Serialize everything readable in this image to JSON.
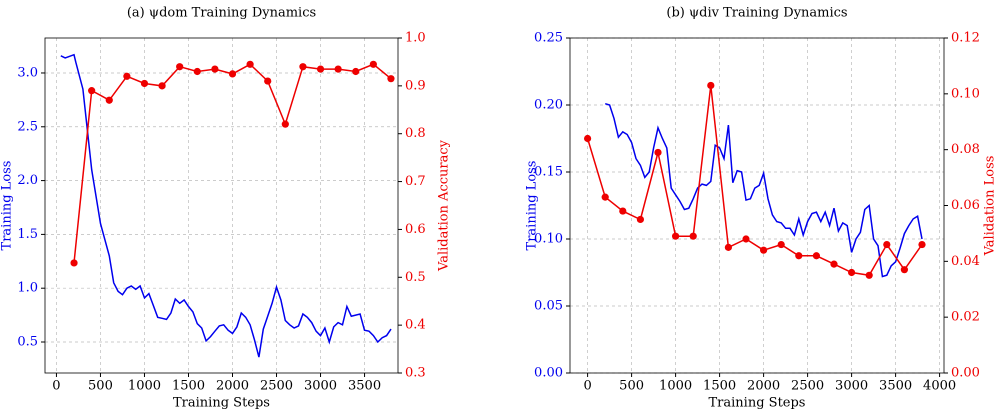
{
  "chart_data": [
    {
      "type": "line",
      "title": "(a) ψdom Training Dynamics",
      "xlabel": "Training Steps",
      "ylabel": "Training Loss",
      "y2label": "Validation Accuracy",
      "grid": true,
      "xlim": [
        -130,
        3880
      ],
      "xticks": [
        0,
        500,
        1000,
        1500,
        2000,
        2500,
        3000,
        3500
      ],
      "ylim": [
        0.212,
        3.325
      ],
      "yticks": [
        {
          "value": 0.5,
          "label": "0.5"
        },
        {
          "value": 1.0,
          "label": "1.0"
        },
        {
          "value": 1.5,
          "label": "1.5"
        },
        {
          "value": 2.0,
          "label": "2.0"
        },
        {
          "value": 2.5,
          "label": "2.5"
        },
        {
          "value": 3.0,
          "label": "3.0"
        }
      ],
      "y2lim": [
        0.3,
        1.0
      ],
      "y2ticks": [
        0.3,
        0.4,
        0.5,
        0.6,
        0.7,
        0.8,
        0.9,
        {
          "value": 1.0,
          "label": "1.0"
        }
      ],
      "series": [
        {
          "name": "Training Loss",
          "color": "#0000ee",
          "markers": false,
          "x": [
            50,
            100,
            200,
            220,
            300,
            400,
            500,
            600,
            650,
            700,
            750,
            800,
            850,
            900,
            950,
            1000,
            1050,
            1100,
            1150,
            1200,
            1250,
            1300,
            1350,
            1400,
            1450,
            1500,
            1550,
            1600,
            1650,
            1700,
            1750,
            1800,
            1850,
            1900,
            1950,
            2000,
            2050,
            2100,
            2150,
            2200,
            2250,
            2300,
            2350,
            2400,
            2450,
            2500,
            2550,
            2600,
            2650,
            2700,
            2750,
            2800,
            2850,
            2900,
            2950,
            3000,
            3050,
            3100,
            3150,
            3200,
            3250,
            3300,
            3350,
            3400,
            3450,
            3500,
            3550,
            3600,
            3650,
            3700,
            3750,
            3800
          ],
          "values": [
            3.16,
            3.14,
            3.17,
            3.1,
            2.85,
            2.1,
            1.6,
            1.3,
            1.05,
            0.97,
            0.94,
            1.0,
            1.02,
            0.99,
            1.02,
            0.91,
            0.95,
            0.84,
            0.73,
            0.72,
            0.71,
            0.77,
            0.9,
            0.86,
            0.89,
            0.83,
            0.78,
            0.67,
            0.63,
            0.51,
            0.55,
            0.6,
            0.65,
            0.66,
            0.61,
            0.58,
            0.64,
            0.77,
            0.73,
            0.66,
            0.52,
            0.36,
            0.62,
            0.74,
            0.86,
            1.01,
            0.89,
            0.7,
            0.66,
            0.63,
            0.65,
            0.76,
            0.73,
            0.68,
            0.6,
            0.56,
            0.63,
            0.5,
            0.64,
            0.68,
            0.66,
            0.83,
            0.74,
            0.75,
            0.76,
            0.61,
            0.6,
            0.56,
            0.5,
            0.54,
            0.56,
            0.62
          ]
        },
        {
          "name": "Validation Accuracy",
          "color": "#ee0000",
          "axis": "y2",
          "markers": true,
          "x": [
            200,
            400,
            600,
            800,
            1000,
            1200,
            1400,
            1600,
            1800,
            2000,
            2200,
            2400,
            2600,
            2800,
            3000,
            3200,
            3400,
            3600,
            3800
          ],
          "values": [
            0.53,
            0.89,
            0.87,
            0.92,
            0.905,
            0.9,
            0.94,
            0.93,
            0.935,
            0.925,
            0.945,
            0.91,
            0.82,
            0.94,
            0.935,
            0.935,
            0.93,
            0.945,
            0.915
          ]
        }
      ]
    },
    {
      "type": "line",
      "title": "(b) ψdiv Training Dynamics",
      "xlabel": "Training Steps",
      "ylabel": "Training Loss",
      "y2label": "Validation Loss",
      "grid": true,
      "xlim": [
        -200,
        4050
      ],
      "xticks": [
        0,
        500,
        1000,
        1500,
        2000,
        2500,
        3000,
        3500,
        4000
      ],
      "ylim": [
        0,
        0.25
      ],
      "yticks": [
        {
          "value": 0,
          "label": "0.00"
        },
        0.05,
        {
          "value": 0.1,
          "label": "0.10"
        },
        0.15,
        {
          "value": 0.2,
          "label": "0.20"
        },
        0.25
      ],
      "y2lim": [
        0,
        0.12
      ],
      "y2ticks": [
        {
          "value": 0,
          "label": "0.00"
        },
        0.02,
        0.04,
        0.06,
        0.08,
        {
          "value": 0.1,
          "label": "0.10"
        },
        0.12
      ],
      "series": [
        {
          "name": "Training Loss",
          "color": "#0000ee",
          "markers": false,
          "x": [
            200,
            250,
            300,
            350,
            400,
            450,
            500,
            550,
            600,
            650,
            700,
            750,
            800,
            850,
            900,
            950,
            1000,
            1050,
            1100,
            1150,
            1200,
            1250,
            1300,
            1350,
            1400,
            1450,
            1500,
            1550,
            1600,
            1650,
            1700,
            1750,
            1800,
            1850,
            1900,
            1950,
            2000,
            2050,
            2100,
            2150,
            2200,
            2250,
            2300,
            2350,
            2400,
            2450,
            2500,
            2550,
            2600,
            2650,
            2700,
            2750,
            2800,
            2850,
            2900,
            2950,
            3000,
            3050,
            3100,
            3150,
            3200,
            3250,
            3300,
            3350,
            3400,
            3450,
            3500,
            3550,
            3600,
            3650,
            3700,
            3750,
            3800
          ],
          "values": [
            0.201,
            0.2,
            0.19,
            0.176,
            0.18,
            0.178,
            0.172,
            0.16,
            0.155,
            0.146,
            0.15,
            0.168,
            0.183,
            0.175,
            0.168,
            0.138,
            0.133,
            0.128,
            0.122,
            0.123,
            0.13,
            0.138,
            0.141,
            0.14,
            0.143,
            0.17,
            0.168,
            0.16,
            0.185,
            0.142,
            0.151,
            0.15,
            0.129,
            0.13,
            0.138,
            0.14,
            0.149,
            0.13,
            0.118,
            0.113,
            0.112,
            0.108,
            0.108,
            0.103,
            0.115,
            0.103,
            0.113,
            0.119,
            0.12,
            0.113,
            0.12,
            0.11,
            0.123,
            0.106,
            0.112,
            0.11,
            0.09,
            0.1,
            0.105,
            0.122,
            0.125,
            0.1,
            0.095,
            0.072,
            0.073,
            0.08,
            0.083,
            0.093,
            0.104,
            0.11,
            0.115,
            0.117,
            0.1
          ]
        },
        {
          "name": "Validation Loss",
          "color": "#ee0000",
          "axis": "y2",
          "markers": true,
          "x": [
            0,
            200,
            400,
            600,
            800,
            1000,
            1200,
            1400,
            1600,
            1800,
            2000,
            2200,
            2400,
            2600,
            2800,
            3000,
            3200,
            3400,
            3600,
            3800
          ],
          "values": [
            0.084,
            0.063,
            0.058,
            0.055,
            0.079,
            0.049,
            0.049,
            0.103,
            0.045,
            0.048,
            0.044,
            0.046,
            0.042,
            0.042,
            0.039,
            0.036,
            0.035,
            0.046,
            0.037,
            0.046
          ]
        }
      ]
    }
  ]
}
